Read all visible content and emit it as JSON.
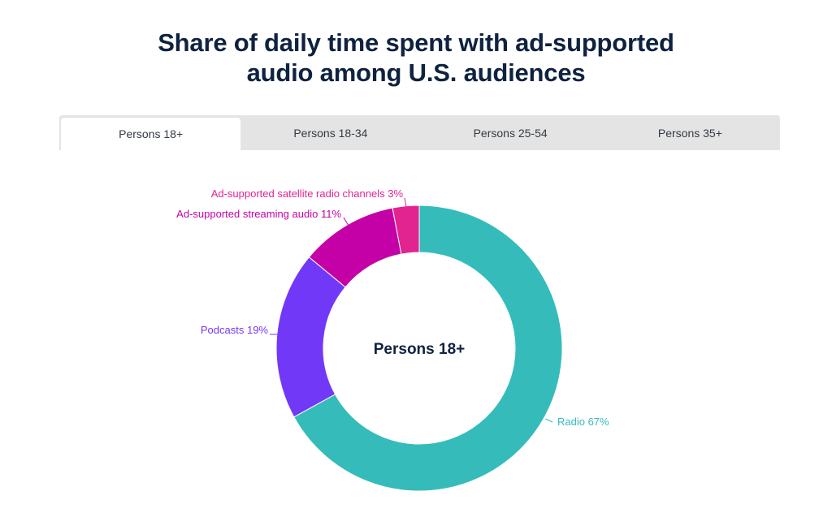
{
  "title_line1": "Share of daily time spent with ad-supported",
  "title_line2": "audio among U.S. audiences",
  "tabs": [
    {
      "label": "Persons 18+",
      "active": true
    },
    {
      "label": "Persons 18-34",
      "active": false
    },
    {
      "label": "Persons 25-54",
      "active": false
    },
    {
      "label": "Persons 35+",
      "active": false
    }
  ],
  "chart_data": {
    "type": "pie",
    "donut": true,
    "center_label": "Persons 18+",
    "title": "Share of daily time spent with ad-supported audio among U.S. audiences",
    "slices": [
      {
        "name": "Radio",
        "value": 67,
        "label": "Radio 67%",
        "color": "#36bbbb"
      },
      {
        "name": "Podcasts",
        "value": 19,
        "label": "Podcasts 19%",
        "color": "#7238f8"
      },
      {
        "name": "Ad-supported streaming audio",
        "value": 11,
        "label": "Ad-supported streaming audio 11%",
        "color": "#c401a6"
      },
      {
        "name": "Ad-supported satellite radio channels",
        "value": 3,
        "label": "Ad-supported satellite radio channels 3%",
        "color": "#e22490"
      }
    ]
  }
}
